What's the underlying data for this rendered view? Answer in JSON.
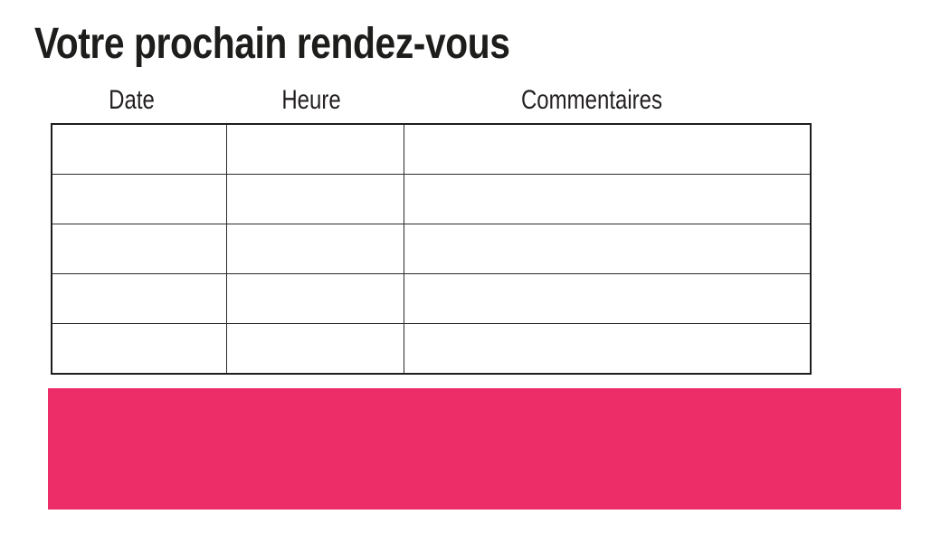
{
  "page": {
    "title": "Votre prochain rendez-vous"
  },
  "table": {
    "columns": [
      {
        "label": "Date"
      },
      {
        "label": "Heure"
      },
      {
        "label": "Commentaires"
      }
    ],
    "rows": [
      [
        "",
        "",
        ""
      ],
      [
        "",
        "",
        ""
      ],
      [
        "",
        "",
        ""
      ],
      [
        "",
        "",
        ""
      ],
      [
        "",
        "",
        ""
      ]
    ]
  },
  "banner": {
    "text": ""
  },
  "colors": {
    "accent_pink": "#ED2D68",
    "table_border": "#2a2a2a",
    "text": "#1d1d1b"
  }
}
